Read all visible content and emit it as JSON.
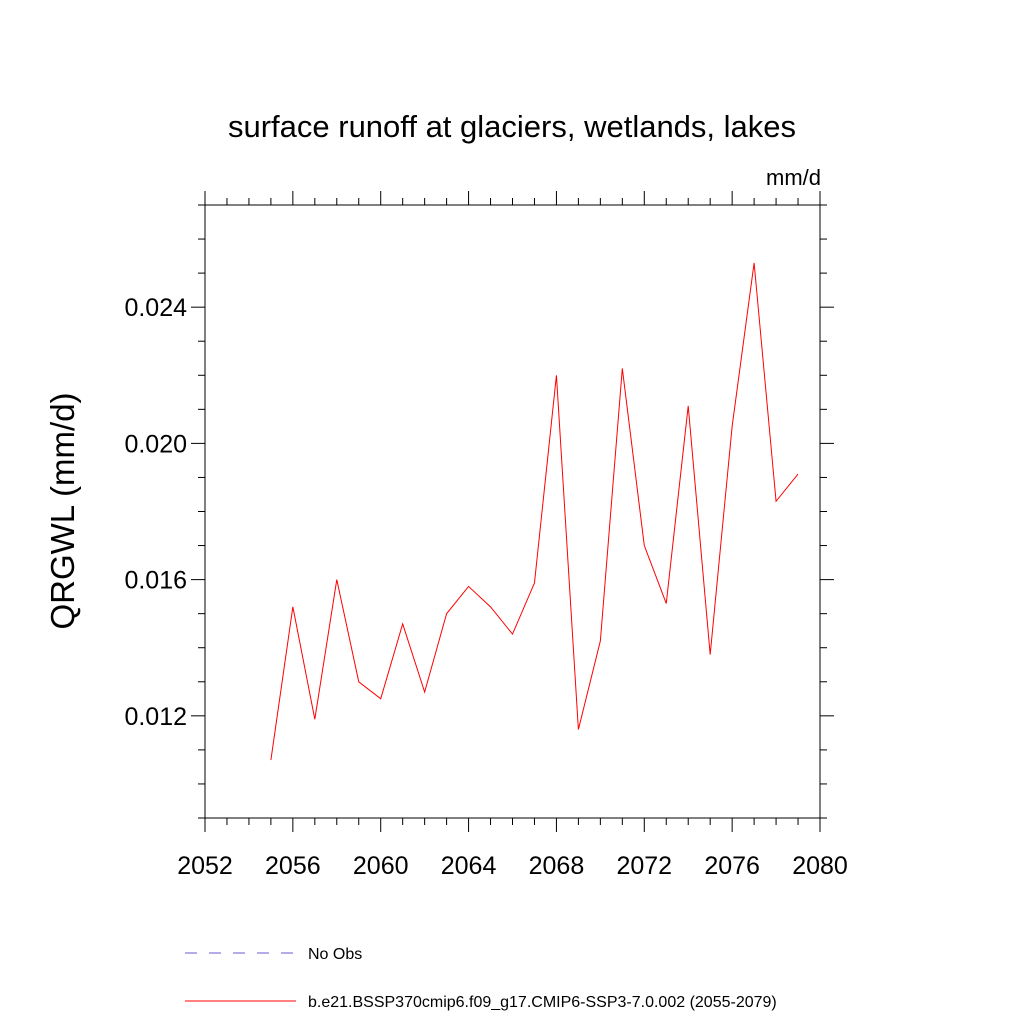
{
  "chart_data": {
    "type": "line",
    "title": "surface runoff at glaciers, wetlands, lakes",
    "units": "mm/d",
    "xlabel": "",
    "ylabel": "QRGWL  (mm/d)",
    "xlim": [
      2052,
      2080
    ],
    "ylim": [
      0.009,
      0.027
    ],
    "x_ticks": [
      2052,
      2056,
      2060,
      2064,
      2068,
      2072,
      2076,
      2080
    ],
    "x_tick_labels": [
      "2052",
      "2056",
      "2060",
      "2064",
      "2068",
      "2072",
      "2076",
      "2080"
    ],
    "y_ticks": [
      0.012,
      0.016,
      0.02,
      0.024
    ],
    "y_tick_labels": [
      "0.012",
      "0.016",
      "0.020",
      "0.024"
    ],
    "grid": false,
    "legend_position": "bottom",
    "series": [
      {
        "name": "b.e21.BSSP370cmip6.f09_g17.CMIP6-SSP3-7.0.002 (2055-2079)",
        "color": "#ff0000",
        "dash": "solid",
        "x": [
          2055,
          2056,
          2057,
          2058,
          2059,
          2060,
          2061,
          2062,
          2063,
          2064,
          2065,
          2066,
          2067,
          2068,
          2069,
          2070,
          2071,
          2072,
          2073,
          2074,
          2075,
          2076,
          2077,
          2078,
          2079
        ],
        "values": [
          0.0107,
          0.0152,
          0.0119,
          0.016,
          0.013,
          0.0125,
          0.0147,
          0.0127,
          0.015,
          0.0158,
          0.0152,
          0.0144,
          0.0159,
          0.022,
          0.0116,
          0.0142,
          0.0222,
          0.017,
          0.0153,
          0.0211,
          0.0138,
          0.0205,
          0.0253,
          0.0183,
          0.0191
        ]
      },
      {
        "name": "No Obs",
        "color": "#6a5acd",
        "dash": "dashed",
        "x": [],
        "values": []
      }
    ]
  }
}
